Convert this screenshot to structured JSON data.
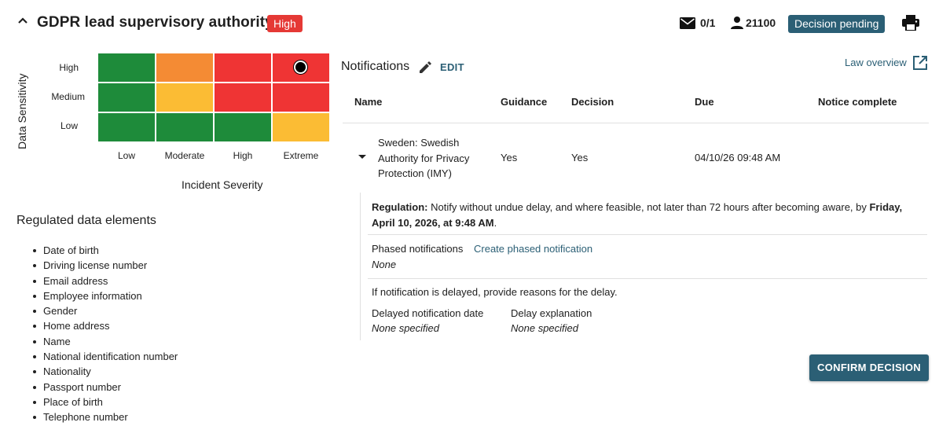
{
  "header": {
    "title": "GDPR lead supervisory authority",
    "severity_badge": "High",
    "mail_count": "0/1",
    "person_count": "21100",
    "status_badge": "Decision pending"
  },
  "risk_matrix": {
    "y_axis_label": "Data Sensitivity",
    "x_axis_label": "Incident Severity",
    "rows": [
      "High",
      "Medium",
      "Low"
    ],
    "columns": [
      "Low",
      "Moderate",
      "High",
      "Extreme"
    ],
    "cell_colors": [
      [
        "#1e8b3a",
        "#f48b34",
        "#ef3434",
        "#ef3434"
      ],
      [
        "#1e8b3a",
        "#fbbc34",
        "#ef3434",
        "#ef3434"
      ],
      [
        "#1e8b3a",
        "#1e8b3a",
        "#1e8b3a",
        "#fbbc34"
      ]
    ],
    "selected": {
      "row": "High",
      "column": "Extreme"
    }
  },
  "regulated_data": {
    "title": "Regulated data elements",
    "items": [
      "Date of birth",
      "Driving license number",
      "Email address",
      "Employee information",
      "Gender",
      "Home address",
      "Name",
      "National identification number",
      "Nationality",
      "Passport number",
      "Place of birth",
      "Telephone number"
    ]
  },
  "notifications": {
    "title": "Notifications",
    "edit_label": "EDIT",
    "law_overview": "Law overview",
    "columns": [
      "Name",
      "Guidance",
      "Decision",
      "Due",
      "Notice complete"
    ],
    "row": {
      "name": "Sweden: Swedish Authority for Privacy Protection (IMY)",
      "guidance": "Yes",
      "decision": "Yes",
      "due": "04/10/26 09:48 AM",
      "notice_complete": ""
    },
    "detail": {
      "regulation_label": "Regulation:",
      "regulation_text": " Notify without undue delay, and where feasible, not later than 72 hours after becoming aware, by ",
      "regulation_deadline": "Friday, April 10, 2026, at 9:48 AM",
      "regulation_end": ".",
      "phased_label": "Phased notifications",
      "phased_link": "Create phased notification",
      "phased_value": "None",
      "delay_prompt": "If notification is delayed, provide reasons for the delay.",
      "delayed_date_label": "Delayed notification date",
      "delayed_date_value": "None specified",
      "delay_explanation_label": "Delay explanation",
      "delay_explanation_value": "None specified"
    },
    "confirm_button": "CONFIRM DECISION"
  },
  "colors": {
    "accent": "#2b5f75",
    "severity_red": "#e53935"
  },
  "icons": [
    "chevron-up-icon",
    "mail-icon",
    "person-icon",
    "print-icon",
    "pencil-icon",
    "external-link-icon",
    "caret-down-icon"
  ]
}
